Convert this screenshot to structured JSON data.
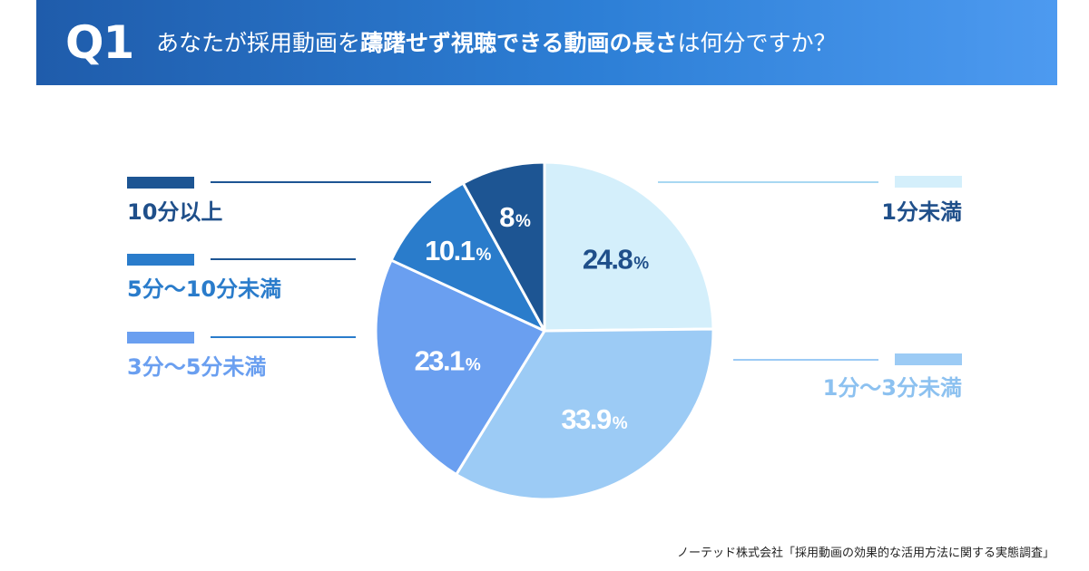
{
  "header": {
    "q_label": "Q1",
    "question_pre": "あなたが採用動画を",
    "question_bold": "躊躇せず視聴できる動画の長さ",
    "question_post": "は何分ですか？"
  },
  "source": "ノーテッド株式会社「採用動画の効果的な活用方法に関する実態調査」",
  "chart_data": {
    "type": "pie",
    "unit": "%",
    "slices": [
      {
        "label": "1分未満",
        "value": 24.8,
        "display": "24.8",
        "color": "#d4effb",
        "text_color": "#1f4f8a"
      },
      {
        "label": "1分〜3分未満",
        "value": 33.9,
        "display": "33.9",
        "color": "#9ccbf5",
        "text_color": "#ffffff"
      },
      {
        "label": "3分〜5分未満",
        "value": 23.1,
        "display": "23.1",
        "color": "#6a9ff0",
        "text_color": "#ffffff"
      },
      {
        "label": "5分〜10分未満",
        "value": 10.1,
        "display": "10.1",
        "color": "#2a7ccb",
        "text_color": "#ffffff"
      },
      {
        "label": "10分以上",
        "value": 8.0,
        "display": "8",
        "color": "#1d5593",
        "text_color": "#ffffff"
      }
    ]
  },
  "colors": {
    "header_start": "#1f5cab",
    "header_end": "#4d9af0",
    "label_dark": "#1f4f8a",
    "label_mid": "#2a7ccb",
    "label_light": "#6a9ff0",
    "label_pale": "#8cc1f0"
  }
}
